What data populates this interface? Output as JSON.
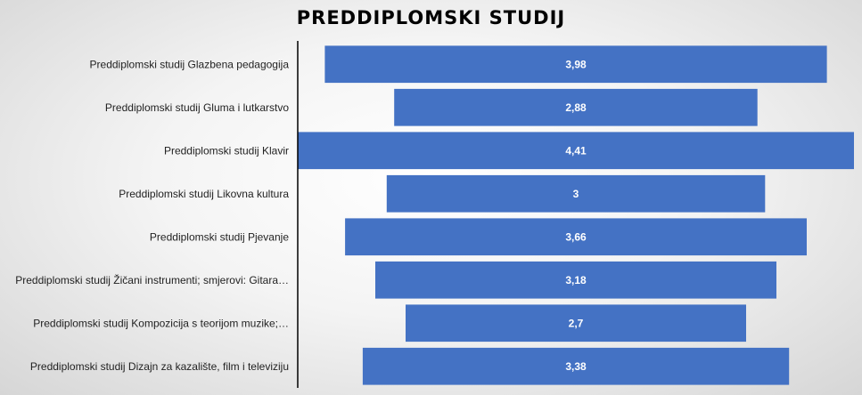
{
  "chart_data": {
    "type": "bar",
    "subtype": "centered-horizontal-funnel",
    "title": "PREDDIPLOMSKI STUDIJ",
    "categories": [
      "Preddiplomski studij Glazbena pedagogija",
      "Preddiplomski studij Gluma i lutkarstvo",
      "Preddiplomski studij Klavir",
      "Preddiplomski studij Likovna kultura",
      "Preddiplomski studij Pjevanje",
      "Preddiplomski studij Žičani instrumenti; smjerovi: Gitara…",
      "Preddiplomski studij Kompozicija s teorijom muzike;…",
      "Preddiplomski studij Dizajn za kazalište, film i televiziju"
    ],
    "values": [
      3.98,
      2.88,
      4.41,
      3,
      3.66,
      3.18,
      2.7,
      3.38
    ],
    "value_labels": [
      "3,98",
      "2,88",
      "4,41",
      "3",
      "3,66",
      "3,18",
      "2,7",
      "3,38"
    ],
    "xlim": [
      0,
      4.41
    ],
    "grid": false,
    "legend": "none",
    "bar_color": "#4472c4",
    "axis_color": "#000000"
  }
}
